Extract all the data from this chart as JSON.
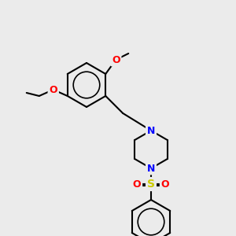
{
  "bg_color": "#ebebeb",
  "bond_color": "#000000",
  "bond_width": 1.5,
  "atom_colors": {
    "N": "#0000ff",
    "O": "#ff0000",
    "S": "#cccc00",
    "Cl": "#00bb00"
  },
  "font_size": 9,
  "fig_width": 3.0,
  "fig_height": 3.0,
  "dpi": 100
}
